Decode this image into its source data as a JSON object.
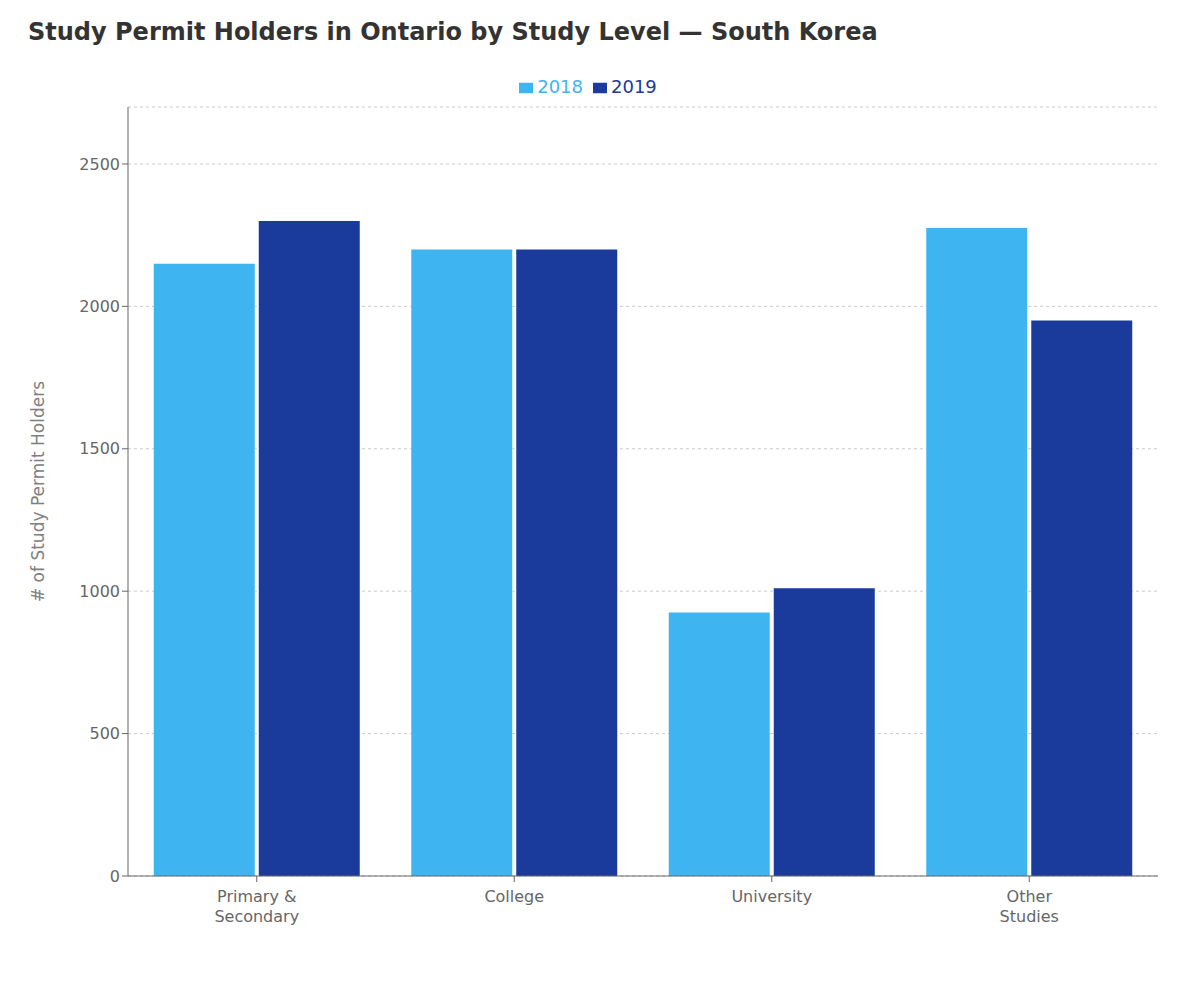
{
  "chart_data": {
    "type": "bar",
    "title": "Study Permit Holders in Ontario by Study Level — South Korea",
    "ylabel": "# of Study Permit Holders",
    "categories": [
      "Primary &\nSecondary",
      "College",
      "University",
      "Other\nStudies"
    ],
    "series": [
      {
        "name": "2018",
        "color": "#3eb5f1",
        "values": [
          2150,
          2200,
          925,
          2275
        ]
      },
      {
        "name": "2019",
        "color": "#1a3a9c",
        "values": [
          2300,
          2200,
          1010,
          1950
        ]
      }
    ],
    "ylim": [
      0,
      2700
    ],
    "yticks": [
      0,
      500,
      1000,
      1500,
      2000,
      2500
    ],
    "grid": true,
    "legend": "top"
  }
}
